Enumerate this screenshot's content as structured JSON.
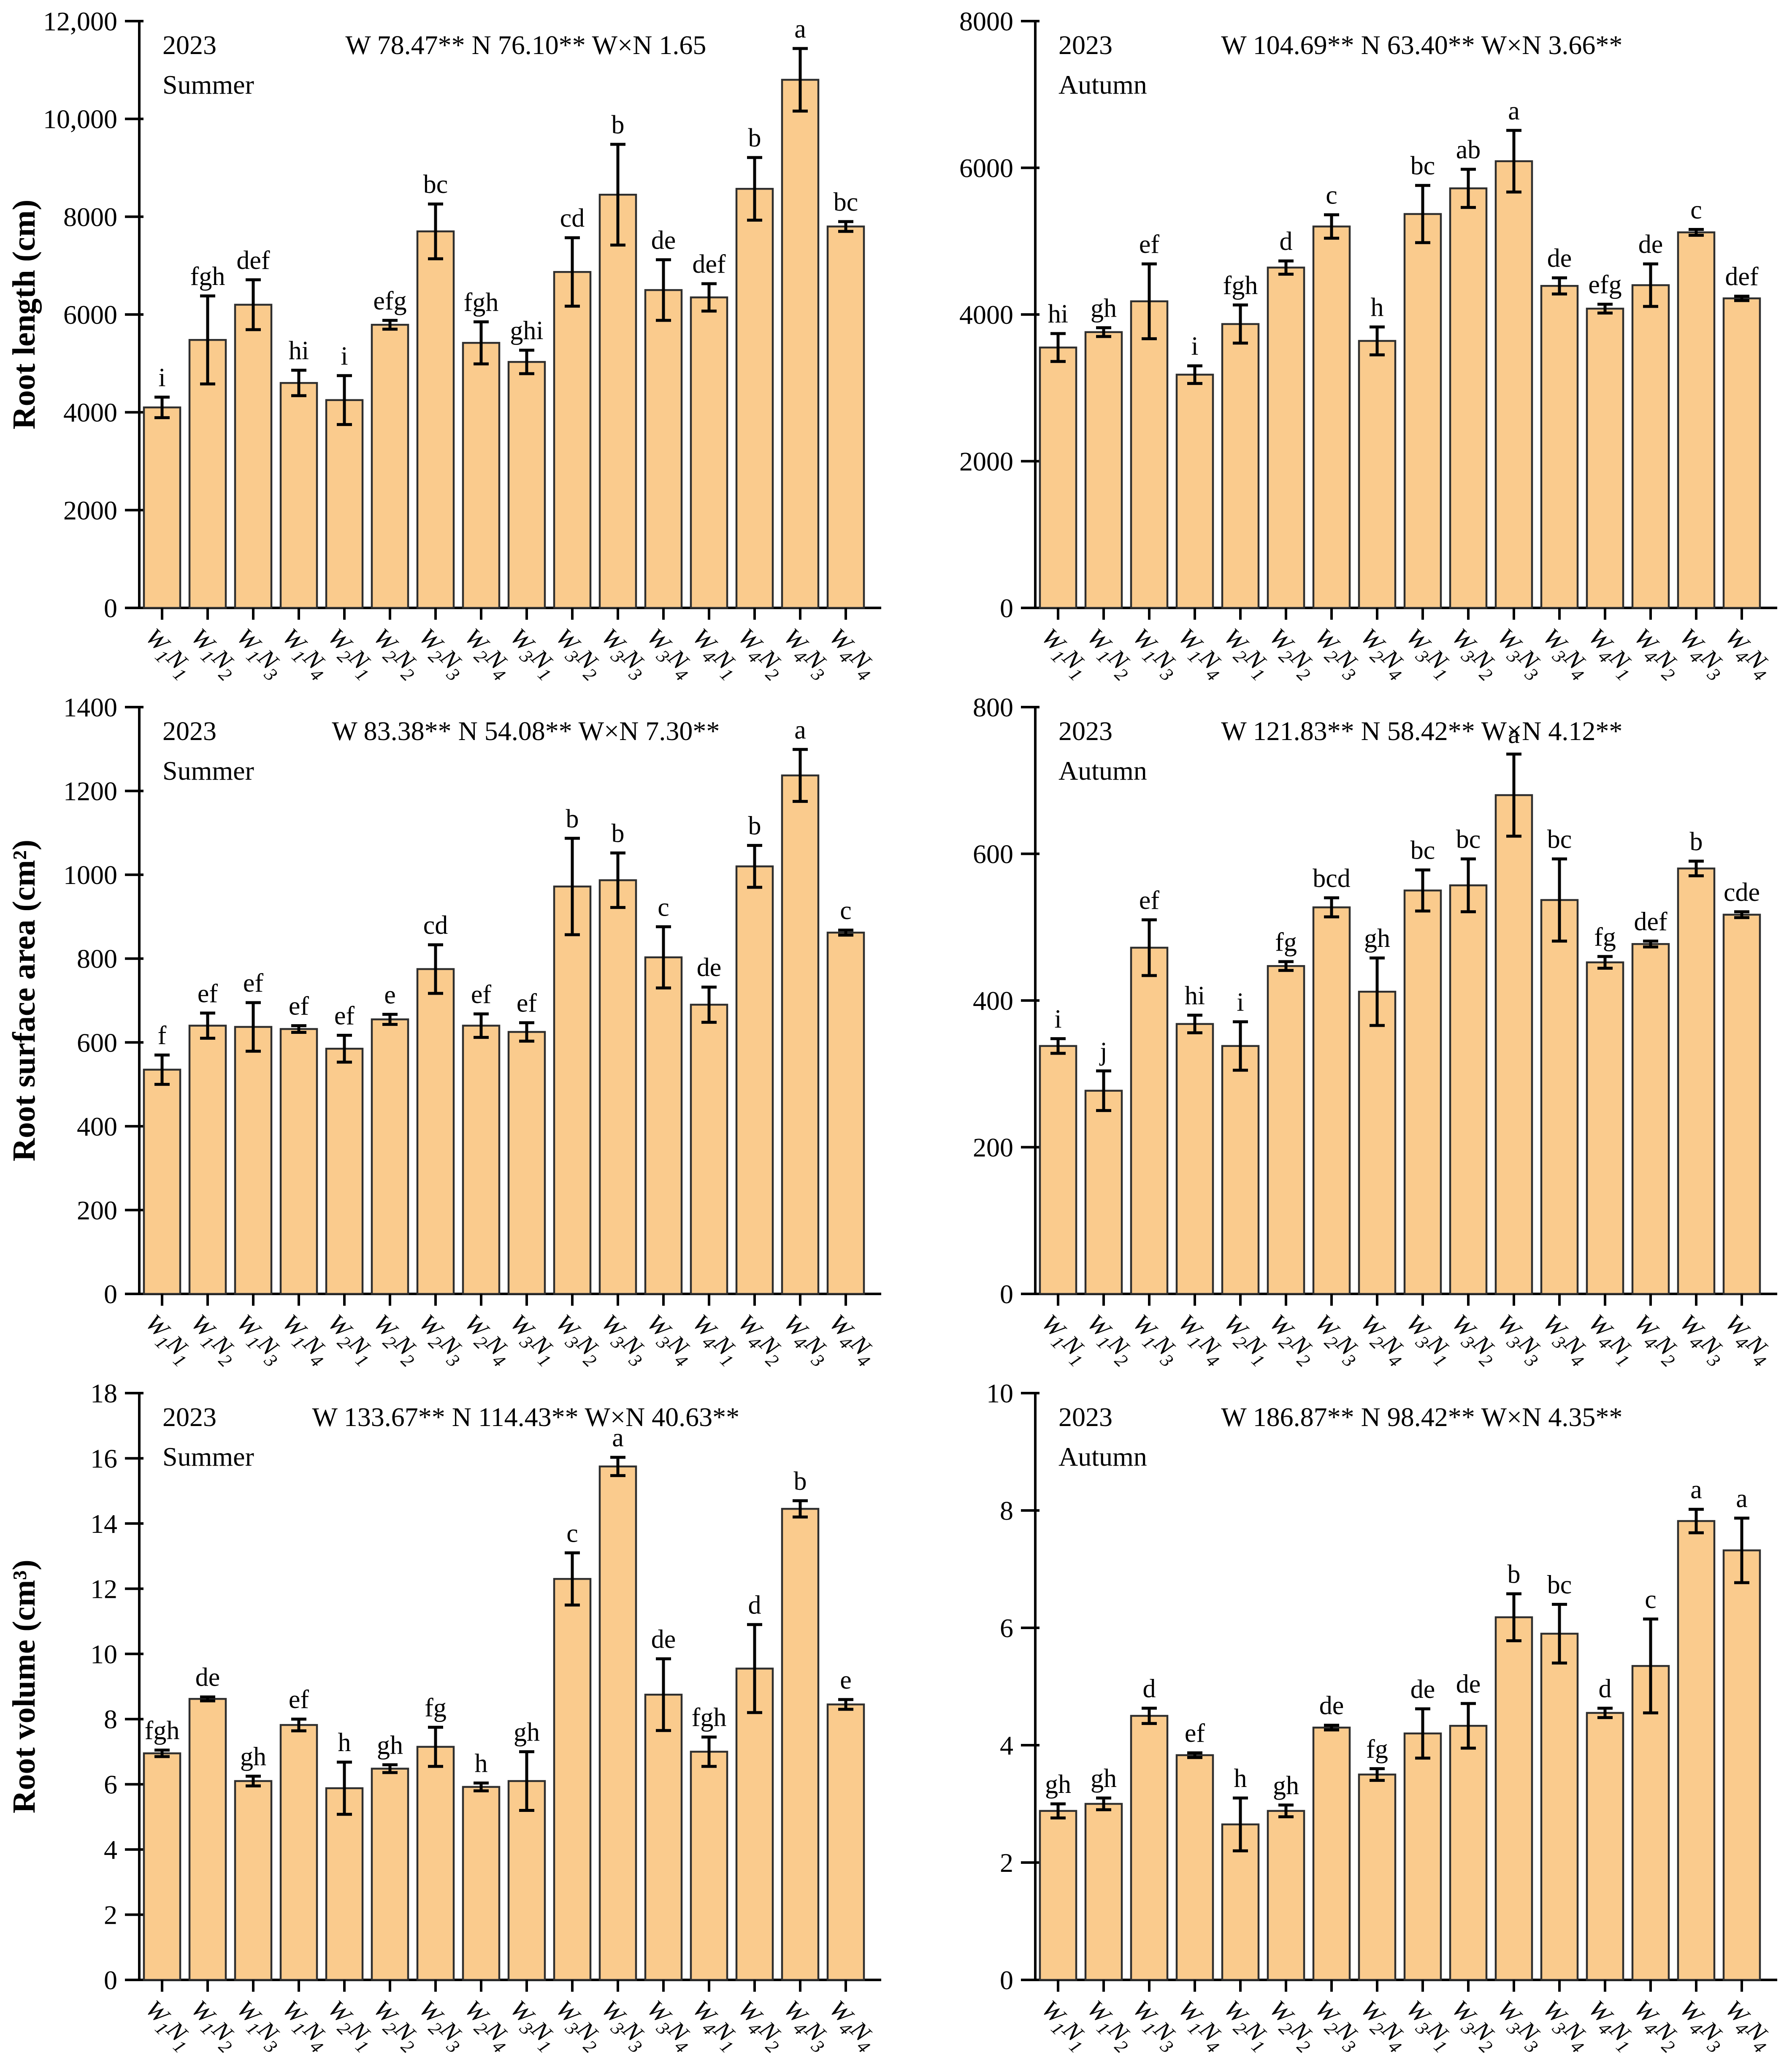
{
  "figure": {
    "description": "Six-panel bar figure: root traits of 16 water x nitrogen treatments, 2023 Summer (left column) and 2023 Autumn (right column)",
    "rows": [
      "Root length",
      "Root surface area",
      "Root volume"
    ],
    "columns": [
      "Summer",
      "Autumn"
    ]
  },
  "colors": {
    "background": "#FFFFFF",
    "bar_fill": "#FACB8D",
    "bar_stroke": "#2E2E2E",
    "axis": "#000000",
    "error_bar": "#000000",
    "text": "#000000"
  },
  "categories": [
    "W1N1",
    "W1N2",
    "W1N3",
    "W1N4",
    "W2N1",
    "W2N2",
    "W2N3",
    "W2N4",
    "W3N1",
    "W3N2",
    "W3N3",
    "W3N4",
    "W4N1",
    "W4N2",
    "W4N3",
    "W4N4"
  ],
  "chart_data": [
    {
      "type": "bar",
      "panel": "top-left",
      "year_label": "2023",
      "season_label": "Summer",
      "stats": {
        "w": "W  78.47**",
        "n": "N  76.10**",
        "wn": "W×N 1.65"
      },
      "ylabel": "Root length (cm)",
      "ylim": [
        0,
        12000
      ],
      "ytick_step": 2000,
      "ytick_labels": [
        "0",
        "2000",
        "4000",
        "6000",
        "8000",
        "10,000",
        "12,000"
      ],
      "values": [
        4100,
        5480,
        6200,
        4600,
        4250,
        5790,
        7700,
        5420,
        5030,
        6870,
        8450,
        6500,
        6350,
        8570,
        10800,
        7800
      ],
      "errors": [
        210,
        900,
        510,
        260,
        500,
        90,
        560,
        430,
        240,
        700,
        1030,
        620,
        280,
        640,
        640,
        100
      ],
      "sig_letters": [
        "i",
        "fgh",
        "def",
        "hi",
        "i",
        "efg",
        "bc",
        "fgh",
        "ghi",
        "cd",
        "b",
        "de",
        "def",
        "b",
        "a",
        "bc"
      ],
      "legend": "none",
      "grid": "off"
    },
    {
      "type": "bar",
      "panel": "top-right",
      "year_label": "2023",
      "season_label": "Autumn",
      "stats": {
        "w": "W  104.69**",
        "n": "N  63.40**",
        "wn": "W×N 3.66**"
      },
      "ylabel": "",
      "ylim": [
        0,
        8000
      ],
      "ytick_step": 2000,
      "ytick_labels": [
        "0",
        "2000",
        "4000",
        "6000",
        "8000"
      ],
      "values": [
        3550,
        3760,
        4180,
        3180,
        3870,
        4640,
        5200,
        3640,
        5370,
        5720,
        6090,
        4390,
        4080,
        4400,
        5120,
        4220
      ],
      "errors": [
        190,
        60,
        510,
        120,
        260,
        90,
        160,
        190,
        390,
        260,
        420,
        110,
        60,
        290,
        40,
        30
      ],
      "sig_letters": [
        "hi",
        "gh",
        "ef",
        "i",
        "fgh",
        "d",
        "c",
        "h",
        "bc",
        "ab",
        "a",
        "de",
        "efg",
        "de",
        "c",
        "def"
      ],
      "legend": "none",
      "grid": "off"
    },
    {
      "type": "bar",
      "panel": "middle-left",
      "year_label": "2023",
      "season_label": "Summer",
      "stats": {
        "w": "W  83.38**",
        "n": "N  54.08**",
        "wn": "W×N  7.30**"
      },
      "ylabel": "Root surface area (cm²)",
      "ylim": [
        0,
        1400
      ],
      "ytick_step": 200,
      "ytick_labels": [
        "0",
        "200",
        "400",
        "600",
        "800",
        "1000",
        "1200",
        "1400"
      ],
      "values": [
        535,
        640,
        637,
        632,
        585,
        655,
        775,
        640,
        625,
        972,
        987,
        803,
        690,
        1020,
        1237,
        862
      ],
      "errors": [
        35,
        30,
        58,
        8,
        32,
        12,
        58,
        28,
        22,
        115,
        65,
        73,
        42,
        50,
        62,
        6
      ],
      "sig_letters": [
        "f",
        "ef",
        "ef",
        "ef",
        "ef",
        "e",
        "cd",
        "ef",
        "ef",
        "b",
        "b",
        "c",
        "de",
        "b",
        "a",
        "c"
      ],
      "legend": "none",
      "grid": "off"
    },
    {
      "type": "bar",
      "panel": "middle-right",
      "year_label": "2023",
      "season_label": "Autumn",
      "stats": {
        "w": "W  121.83**",
        "n": "N  58.42**",
        "wn": "W×N  4.12**"
      },
      "ylabel": "",
      "ylim": [
        0,
        800
      ],
      "ytick_step": 200,
      "ytick_labels": [
        "0",
        "200",
        "400",
        "600",
        "800"
      ],
      "values": [
        338,
        277,
        472,
        368,
        338,
        447,
        527,
        412,
        550,
        557,
        680,
        537,
        452,
        477,
        580,
        517
      ],
      "errors": [
        10,
        27,
        38,
        12,
        33,
        6,
        13,
        46,
        28,
        36,
        56,
        56,
        8,
        4,
        10,
        4
      ],
      "sig_letters": [
        "i",
        "j",
        "ef",
        "hi",
        "i",
        "fg",
        "bcd",
        "gh",
        "bc",
        "bc",
        "a",
        "bc",
        "fg",
        "def",
        "b",
        "cde"
      ],
      "legend": "none",
      "grid": "off"
    },
    {
      "type": "bar",
      "panel": "bottom-left",
      "year_label": "2023",
      "season_label": "Summer",
      "stats": {
        "w": "W 133.67**",
        "n": "N  114.43**",
        "wn": "W×N  40.63**"
      },
      "ylabel": "Root volume (cm³)",
      "ylim": [
        0,
        18
      ],
      "ytick_step": 2,
      "ytick_labels": [
        "0",
        "2",
        "4",
        "6",
        "8",
        "10",
        "12",
        "14",
        "16",
        "18"
      ],
      "values": [
        6.95,
        8.62,
        6.1,
        7.82,
        5.88,
        6.48,
        7.15,
        5.92,
        6.1,
        12.3,
        15.75,
        8.75,
        7.0,
        9.55,
        14.45,
        8.45
      ],
      "errors": [
        0.1,
        0.06,
        0.15,
        0.18,
        0.8,
        0.12,
        0.6,
        0.12,
        0.9,
        0.8,
        0.28,
        1.1,
        0.45,
        1.35,
        0.25,
        0.15
      ],
      "sig_letters": [
        "fgh",
        "de",
        "gh",
        "ef",
        "h",
        "gh",
        "fg",
        "h",
        "gh",
        "c",
        "a",
        "de",
        "fgh",
        "d",
        "b",
        "e"
      ],
      "legend": "none",
      "grid": "off"
    },
    {
      "type": "bar",
      "panel": "bottom-right",
      "year_label": "2023",
      "season_label": "Autumn",
      "stats": {
        "w": "W 186.87**",
        "n": "N  98.42**",
        "wn": "W×N  4.35**"
      },
      "ylabel": "",
      "ylim": [
        0,
        10
      ],
      "ytick_step": 2,
      "ytick_labels": [
        "0",
        "2",
        "4",
        "6",
        "8",
        "10"
      ],
      "values": [
        2.88,
        3.0,
        4.5,
        3.83,
        2.65,
        2.88,
        4.3,
        3.5,
        4.2,
        4.33,
        6.18,
        5.9,
        4.55,
        5.35,
        7.82,
        7.32
      ],
      "errors": [
        0.12,
        0.1,
        0.13,
        0.04,
        0.45,
        0.1,
        0.04,
        0.1,
        0.42,
        0.38,
        0.4,
        0.5,
        0.08,
        0.8,
        0.2,
        0.55
      ],
      "sig_letters": [
        "gh",
        "gh",
        "d",
        "ef",
        "h",
        "gh",
        "de",
        "fg",
        "de",
        "de",
        "b",
        "bc",
        "d",
        "c",
        "a",
        "a"
      ],
      "legend": "none",
      "grid": "off"
    }
  ]
}
